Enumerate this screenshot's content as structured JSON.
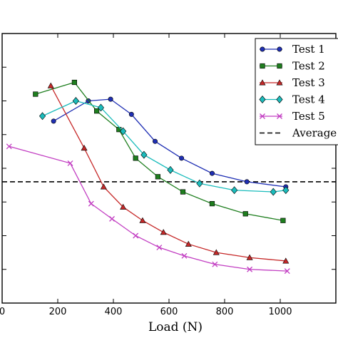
{
  "chart_data": {
    "type": "line",
    "title": "",
    "xlabel": "Load (N)",
    "ylabel": "",
    "xlim": [
      0,
      1200
    ],
    "ylim": [
      0,
      8
    ],
    "x_ticks": [
      0,
      200,
      400,
      600,
      800,
      1000
    ],
    "x_tick_labels": [
      "0",
      "200",
      "400",
      "600",
      "800",
      "1000"
    ],
    "y_ticks": [
      1,
      2,
      3,
      4,
      5,
      6,
      7
    ],
    "grid": false,
    "legend_position": "top-right",
    "series": [
      {
        "name": "Test 1",
        "color": "#1f2fb4",
        "marker": "circle",
        "x": [
          185,
          310,
          390,
          465,
          550,
          645,
          755,
          880,
          1020
        ],
        "y": [
          5.4,
          6.0,
          6.05,
          5.6,
          4.8,
          4.3,
          3.85,
          3.6,
          3.45
        ]
      },
      {
        "name": "Test 2",
        "color": "#1e7e1e",
        "marker": "square",
        "x": [
          120,
          260,
          340,
          420,
          480,
          560,
          650,
          755,
          875,
          1010
        ],
        "y": [
          6.2,
          6.55,
          5.7,
          5.15,
          4.3,
          3.75,
          3.3,
          2.95,
          2.65,
          2.45
        ]
      },
      {
        "name": "Test 3",
        "color": "#c62828",
        "marker": "triangle",
        "x": [
          175,
          295,
          365,
          435,
          505,
          580,
          670,
          770,
          890,
          1020
        ],
        "y": [
          6.45,
          4.6,
          3.45,
          2.85,
          2.45,
          2.1,
          1.75,
          1.5,
          1.35,
          1.25
        ]
      },
      {
        "name": "Test 4",
        "color": "#1bbcbc",
        "marker": "diamond",
        "x": [
          145,
          265,
          355,
          435,
          510,
          605,
          710,
          835,
          975,
          1020
        ],
        "y": [
          5.55,
          6.0,
          5.8,
          5.1,
          4.4,
          3.95,
          3.55,
          3.35,
          3.3,
          3.35
        ]
      },
      {
        "name": "Test 5",
        "color": "#c23ec2",
        "marker": "x",
        "x": [
          25,
          245,
          320,
          395,
          480,
          565,
          655,
          765,
          890,
          1025
        ],
        "y": [
          4.65,
          4.15,
          2.95,
          2.5,
          2.0,
          1.65,
          1.4,
          1.15,
          1.0,
          0.95
        ]
      }
    ],
    "reference_lines": [
      {
        "name": "Average",
        "y": 3.6,
        "style": "dashed",
        "color": "#000000"
      }
    ]
  }
}
